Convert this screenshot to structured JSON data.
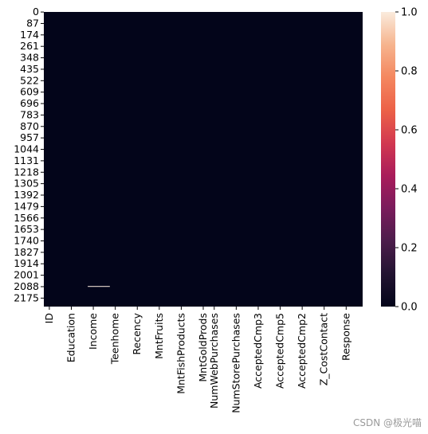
{
  "chart_data": {
    "type": "heatmap",
    "title": "",
    "xlabel": "",
    "ylabel": "",
    "x_tick_labels": [
      "ID",
      "Education",
      "Income",
      "Teenhome",
      "Recency",
      "MntFruits",
      "MntFishProducts",
      "MntGoldProds",
      "NumWebPurchases",
      "NumStorePurchases",
      "AcceptedCmp3",
      "AcceptedCmp5",
      "AcceptedCmp2",
      "Z_CostContact",
      "Response"
    ],
    "y_tick_labels": [
      "0",
      "87",
      "174",
      "261",
      "348",
      "435",
      "522",
      "609",
      "696",
      "783",
      "870",
      "957",
      "1044",
      "1131",
      "1218",
      "1305",
      "1392",
      "1479",
      "1566",
      "1653",
      "1740",
      "1827",
      "1914",
      "2001",
      "2088",
      "2175"
    ],
    "row_count": 2240,
    "column_count": 29,
    "default_value": 0,
    "nonzero_cells": [
      {
        "column": 4,
        "row": 2084,
        "value": 1
      },
      {
        "column": 4,
        "row": 2085,
        "value": 1
      },
      {
        "column": 5,
        "row": 2084,
        "value": 1
      },
      {
        "column": 5,
        "row": 2085,
        "value": 1
      }
    ],
    "colorbar": {
      "range": [
        0,
        1
      ],
      "ticks": [
        "0.0",
        "0.2",
        "0.4",
        "0.6",
        "0.8",
        "1.0"
      ],
      "colormap": [
        "#03051a",
        "#221331",
        "#4c1d4b",
        "#7a1c5c",
        "#a91c5b",
        "#d23850",
        "#ec6147",
        "#f4875f",
        "#f6b48e",
        "#faebdd"
      ]
    }
  },
  "watermark": "CSDN @极光喵"
}
